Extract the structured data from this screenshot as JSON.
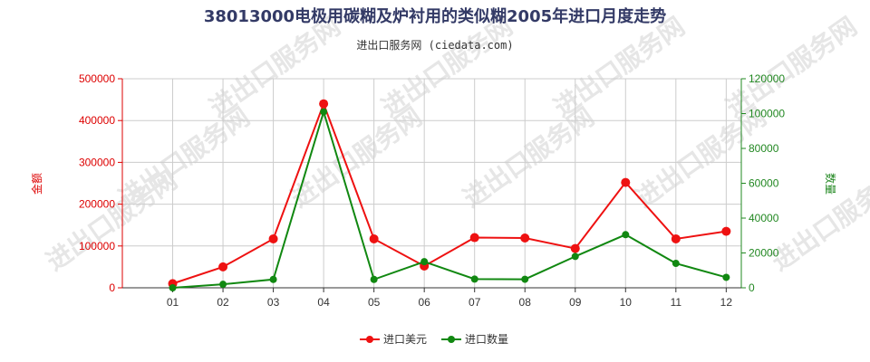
{
  "chart_data": {
    "type": "line",
    "title": "38013000电极用碳糊及炉衬用的类似糊2005年进口月度走势",
    "subtitle": "进出口服务网 (ciedata.com)",
    "watermark": "进出口服务网",
    "categories": [
      "01",
      "02",
      "03",
      "04",
      "05",
      "06",
      "07",
      "08",
      "09",
      "10",
      "11",
      "12"
    ],
    "ylabel_left": "金额",
    "ylabel_right": "数量",
    "ylim_left": [
      0,
      500000
    ],
    "yticks_left": [
      "0",
      "100000",
      "200000",
      "300000",
      "400000",
      "500000"
    ],
    "ylim_right": [
      0,
      120000
    ],
    "yticks_right": [
      "0",
      "20000",
      "40000",
      "60000",
      "80000",
      "100000",
      "120000"
    ],
    "grid": true,
    "legend_position": "bottom",
    "series": [
      {
        "name": "进口美元",
        "axis": "left",
        "color": "#ee1111",
        "values": [
          10000,
          50000,
          117000,
          440000,
          117000,
          52000,
          120000,
          119000,
          94000,
          252000,
          117000,
          135000
        ]
      },
      {
        "name": "进口数量",
        "axis": "right",
        "color": "#118811",
        "values": [
          0,
          2000,
          4800,
          101000,
          4800,
          15000,
          5000,
          4900,
          18000,
          30500,
          14000,
          6000
        ]
      }
    ]
  }
}
